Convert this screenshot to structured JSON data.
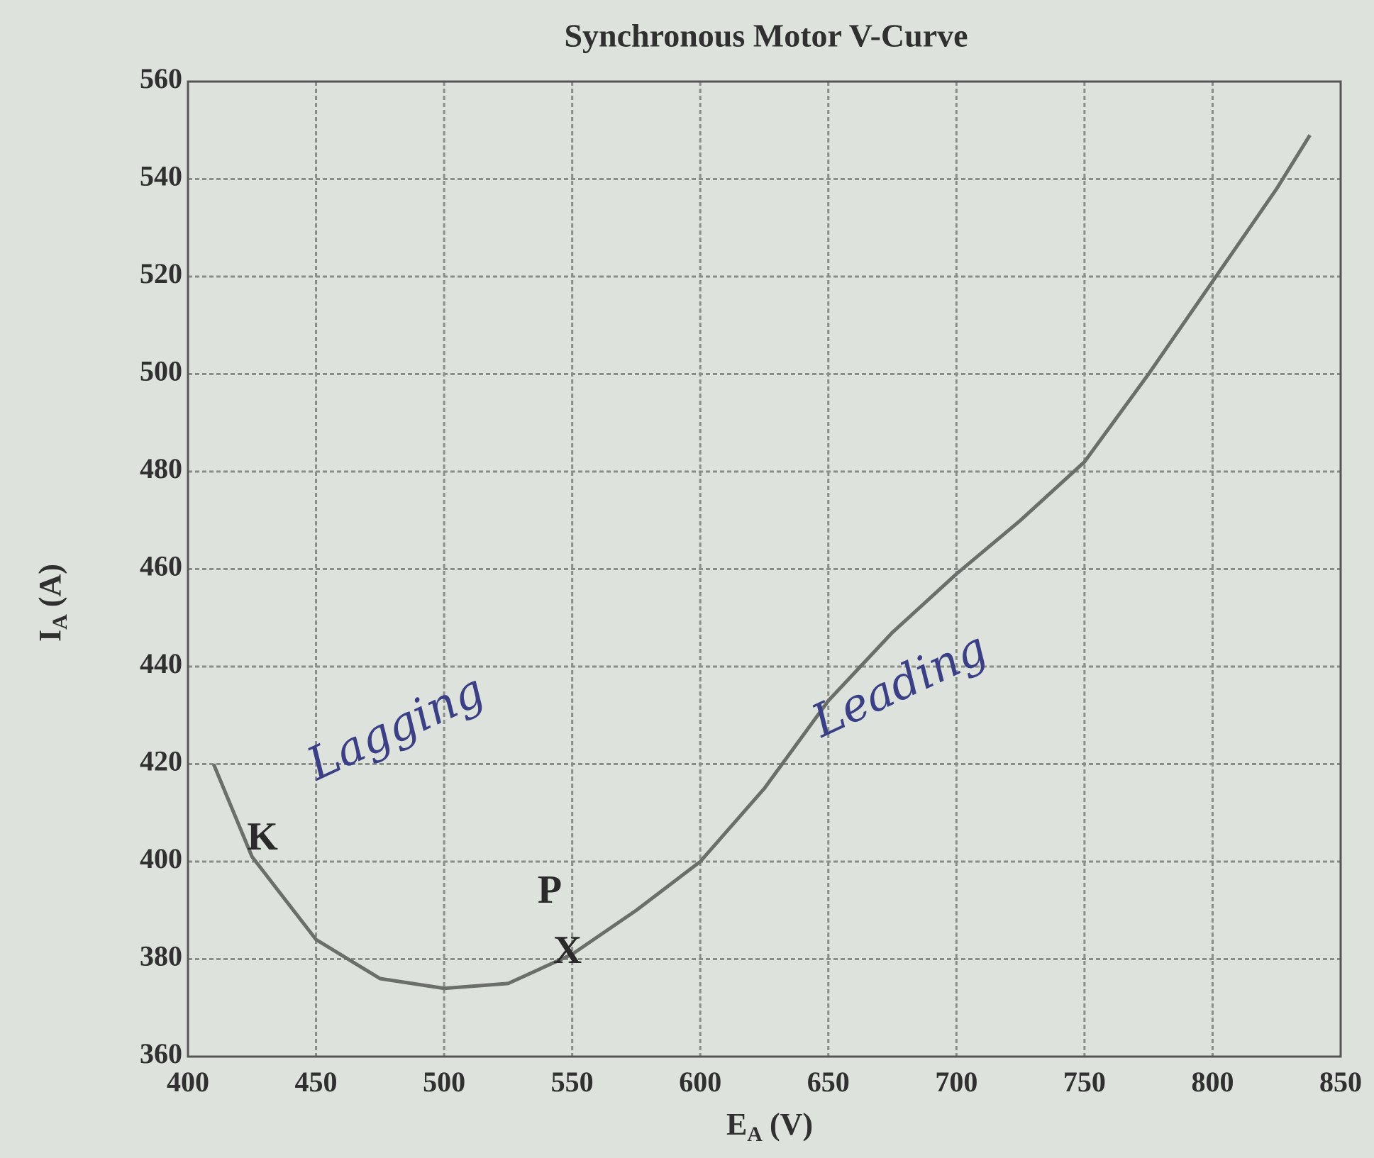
{
  "chart_data": {
    "type": "line",
    "title": "Synchronous Motor V-Curve",
    "xlabel": {
      "symbol": "E",
      "subscript": "A",
      "unit": "(V)"
    },
    "ylabel": {
      "symbol": "I",
      "subscript": "A",
      "unit": "(A)"
    },
    "x": [
      410,
      425,
      450,
      475,
      500,
      525,
      550,
      575,
      600,
      625,
      650,
      675,
      700,
      725,
      750,
      775,
      800,
      825,
      838
    ],
    "series": [
      {
        "color": "#6b6e6b",
        "values": [
          420,
          401,
          384,
          376,
          374,
          375,
          381,
          390,
          400,
          415,
          433,
          447,
          459,
          470,
          482,
          500,
          519,
          538,
          549
        ]
      }
    ],
    "xlim": [
      400,
      850
    ],
    "xticks": [
      400,
      450,
      500,
      550,
      600,
      650,
      700,
      750,
      800,
      850
    ],
    "ylim": [
      360,
      560
    ],
    "yticks": [
      360,
      380,
      400,
      420,
      440,
      460,
      480,
      500,
      520,
      540,
      560
    ],
    "grid": true,
    "annotations": [
      "Lagging",
      "Leading",
      "K",
      "P",
      "X"
    ]
  }
}
